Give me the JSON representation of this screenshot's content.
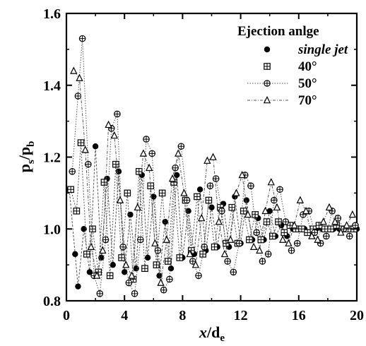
{
  "chart_data": {
    "type": "line",
    "xlabel_var": "x",
    "xlabel_sep": "/d",
    "xlabel_sub": "e",
    "ylabel_p1": "p",
    "ylabel_s1": "s",
    "ylabel_sep": "/p",
    "ylabel_s2": "b",
    "xlim": [
      0,
      20
    ],
    "ylim": [
      0.8,
      1.6
    ],
    "xticks": [
      0,
      4,
      8,
      12,
      16,
      20
    ],
    "yticks": [
      0.8,
      1.0,
      1.2,
      1.4,
      1.6
    ],
    "ytick_labels": [
      "0.8",
      "1.0",
      "1.2",
      "1.4",
      "1.6"
    ],
    "legend_title": "Ejection anlge",
    "legend_position": "top-right",
    "series": [
      {
        "name": "single jet",
        "marker": "filled-circle",
        "x": [
          0.2,
          0.6,
          0.8,
          1.2,
          1.6,
          2.0,
          2.4,
          2.8,
          3.2,
          3.6,
          4.0,
          4.4,
          4.8,
          5.2,
          5.6,
          6.0,
          6.4,
          6.8,
          7.2,
          7.6,
          8.0,
          8.4,
          8.8,
          9.2,
          9.6,
          10.0,
          10.4,
          10.8,
          11.2,
          11.6,
          12.0,
          12.4,
          12.8,
          13.2,
          13.6,
          14.0,
          14.4,
          14.8,
          15.2,
          15.6,
          16.0,
          16.4,
          16.8,
          17.2,
          17.6,
          18.0,
          18.4,
          18.8,
          19.2,
          19.6,
          20.0
        ],
        "y": [
          1.11,
          0.93,
          0.84,
          1.0,
          0.88,
          1.23,
          0.92,
          1.14,
          0.9,
          1.16,
          0.88,
          1.04,
          0.89,
          1.15,
          0.92,
          1.09,
          0.87,
          1.02,
          0.89,
          1.15,
          0.92,
          1.05,
          0.93,
          1.11,
          0.94,
          1.06,
          0.95,
          1.07,
          0.95,
          1.09,
          0.96,
          1.08,
          0.97,
          1.03,
          0.97,
          1.05,
          0.98,
          1.01,
          0.98,
          1.0,
          1.0,
          1.0,
          0.99,
          1.0,
          1.0,
          1.0,
          1.0,
          1.0,
          1.0,
          1.0,
          1.0
        ]
      },
      {
        "name": "40°",
        "marker": "square-plus",
        "x": [
          0.3,
          0.7,
          1.0,
          1.4,
          1.8,
          2.2,
          2.6,
          3.0,
          3.4,
          3.8,
          4.2,
          4.6,
          5.0,
          5.4,
          5.8,
          6.2,
          6.6,
          7.0,
          7.4,
          7.8,
          8.2,
          8.6,
          9.0,
          9.4,
          9.8,
          10.2,
          10.6,
          11.0,
          11.4,
          11.8,
          12.2,
          12.6,
          13.0,
          13.4,
          13.8,
          14.2,
          14.6,
          15.0,
          15.4,
          15.8,
          16.2,
          16.6,
          17.0,
          17.4,
          17.8,
          18.2,
          18.6,
          19.0,
          19.4,
          19.8
        ],
        "y": [
          1.11,
          1.05,
          1.24,
          0.93,
          1.0,
          0.88,
          1.13,
          0.87,
          1.18,
          0.92,
          1.1,
          0.86,
          1.16,
          0.89,
          1.12,
          0.9,
          1.1,
          0.91,
          1.13,
          0.92,
          1.08,
          0.94,
          1.09,
          0.93,
          1.08,
          0.95,
          1.06,
          0.96,
          1.06,
          0.96,
          1.05,
          0.97,
          1.04,
          0.97,
          1.02,
          0.98,
          1.02,
          0.99,
          1.01,
          1.0,
          1.0,
          0.99,
          1.0,
          1.01,
          1.0,
          1.0,
          1.01,
          1.0,
          1.0,
          1.0
        ]
      },
      {
        "name": "50°",
        "marker": "circle-plus",
        "x": [
          0.4,
          0.8,
          1.1,
          1.5,
          1.9,
          2.3,
          2.7,
          3.1,
          3.5,
          3.9,
          4.3,
          4.7,
          5.1,
          5.5,
          5.9,
          6.3,
          6.7,
          7.1,
          7.5,
          7.9,
          8.3,
          8.7,
          9.1,
          9.5,
          9.9,
          10.3,
          10.7,
          11.1,
          11.5,
          11.9,
          12.3,
          12.7,
          13.1,
          13.5,
          13.9,
          14.3,
          14.7,
          15.1,
          15.5,
          15.9,
          16.3,
          16.7,
          17.1,
          17.5,
          17.9,
          18.3,
          18.7,
          19.1,
          19.5,
          19.9
        ],
        "y": [
          1.16,
          1.37,
          1.53,
          1.18,
          0.87,
          0.82,
          0.97,
          1.28,
          1.32,
          0.95,
          0.85,
          0.82,
          0.97,
          1.25,
          1.21,
          0.94,
          0.83,
          0.86,
          1.17,
          1.23,
          1.08,
          0.91,
          0.87,
          0.95,
          1.12,
          1.14,
          1.05,
          0.91,
          0.88,
          0.96,
          1.15,
          1.12,
          0.99,
          0.91,
          0.93,
          1.08,
          1.11,
          1.02,
          0.94,
          0.96,
          1.04,
          1.05,
          0.99,
          0.96,
          0.98,
          1.05,
          1.03,
          1.0,
          0.98,
          1.01
        ]
      },
      {
        "name": "70°",
        "marker": "triangle",
        "x": [
          0.5,
          0.9,
          1.3,
          1.7,
          2.1,
          2.5,
          2.9,
          3.3,
          3.7,
          4.1,
          4.5,
          4.9,
          5.3,
          5.7,
          6.1,
          6.5,
          6.9,
          7.3,
          7.7,
          8.1,
          8.5,
          8.9,
          9.3,
          9.7,
          10.1,
          10.5,
          10.9,
          11.3,
          11.7,
          12.1,
          12.5,
          12.9,
          13.3,
          13.7,
          14.1,
          14.5,
          14.9,
          15.3,
          15.7,
          16.1,
          16.5,
          16.9,
          17.3,
          17.7,
          18.1,
          18.5,
          18.9,
          19.3,
          19.7
        ],
        "y": [
          1.44,
          1.42,
          1.22,
          0.95,
          0.87,
          0.94,
          1.29,
          1.26,
          1.08,
          0.9,
          0.87,
          1.06,
          1.21,
          1.17,
          0.96,
          0.85,
          0.97,
          1.14,
          1.21,
          1.1,
          0.93,
          0.9,
          1.03,
          1.19,
          1.2,
          1.02,
          0.93,
          0.97,
          1.1,
          1.15,
          1.04,
          0.95,
          0.94,
          1.05,
          1.13,
          1.06,
          0.97,
          0.96,
          1.01,
          1.08,
          1.05,
          0.98,
          0.97,
          1.02,
          1.06,
          1.02,
          0.99,
          1.01,
          1.04
        ]
      }
    ]
  }
}
